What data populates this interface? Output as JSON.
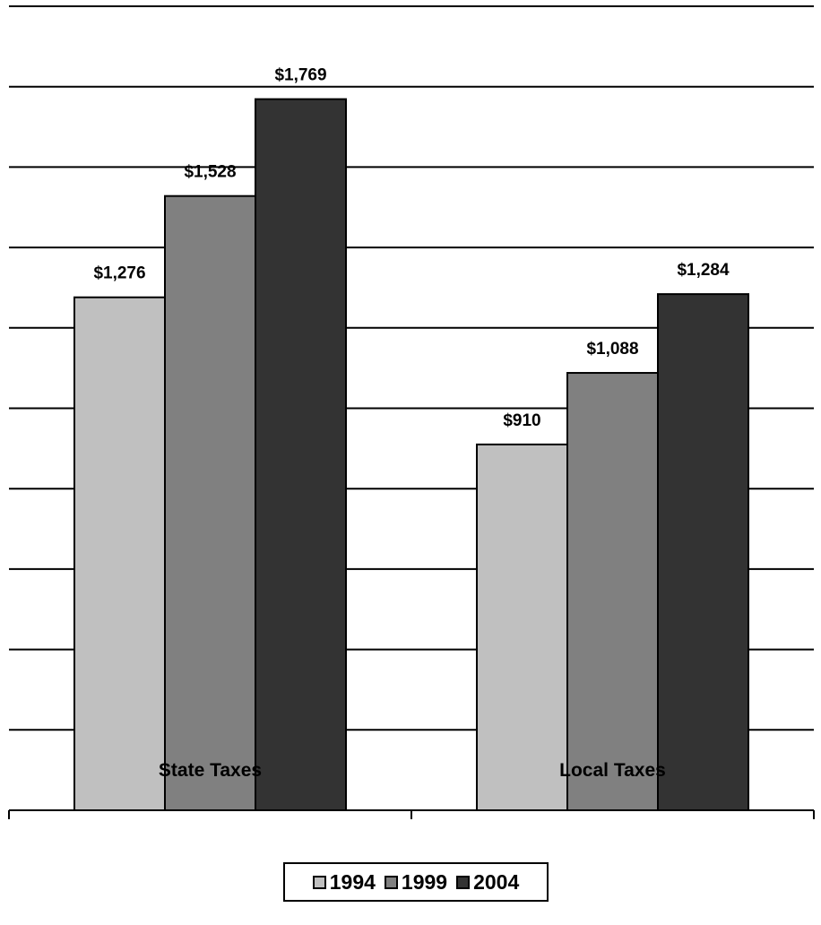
{
  "chart_data": {
    "type": "bar",
    "categories": [
      "State Taxes",
      "Local Taxes"
    ],
    "series": [
      {
        "name": "1994",
        "values": [
          1276,
          910
        ],
        "labels": [
          "$1,276",
          "$910"
        ],
        "color": "#c0c0c0"
      },
      {
        "name": "1999",
        "values": [
          1528,
          1088
        ],
        "labels": [
          "$1,528",
          "$1,088"
        ],
        "color": "#808080"
      },
      {
        "name": "2004",
        "values": [
          1769,
          1284
        ],
        "labels": [
          "$1,769",
          "$1,284"
        ],
        "color": "#333333"
      }
    ],
    "ylim": [
      0,
      2000
    ],
    "grid_step": 200,
    "grid": true,
    "legend": "bottom",
    "title": "",
    "xlabel": "",
    "ylabel": ""
  }
}
